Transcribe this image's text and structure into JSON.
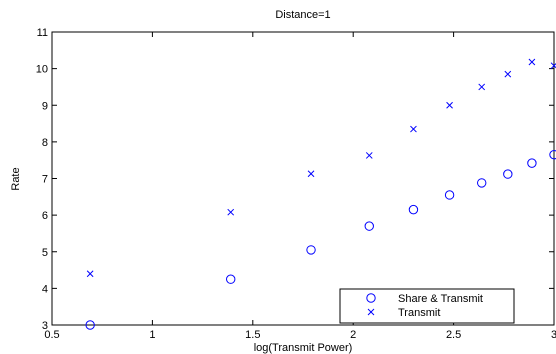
{
  "chart_data": {
    "type": "scatter",
    "title": "Distance=1",
    "xlabel": "log(Transmit Power)",
    "ylabel": "Rate",
    "xlim": [
      0.5,
      3
    ],
    "ylim": [
      3,
      11
    ],
    "xticks": [
      0.5,
      1,
      1.5,
      2,
      2.5,
      3
    ],
    "xtick_labels": [
      "0.5",
      "1",
      "1.5",
      "2",
      "2.5",
      "3"
    ],
    "yticks": [
      3,
      4,
      5,
      6,
      7,
      8,
      9,
      10,
      11
    ],
    "ytick_labels": [
      "3",
      "4",
      "5",
      "6",
      "7",
      "8",
      "9",
      "10",
      "11"
    ],
    "grid": false,
    "legend_position": "bottom-right",
    "series": [
      {
        "name": "Share & Transmit",
        "marker": "circle",
        "color": "#0000ff",
        "x": [
          0.69,
          1.39,
          1.79,
          2.08,
          2.3,
          2.48,
          2.64,
          2.77,
          2.89,
          3.0
        ],
        "y": [
          3.0,
          4.25,
          5.05,
          5.7,
          6.15,
          6.55,
          6.88,
          7.12,
          7.42,
          7.65
        ]
      },
      {
        "name": "Transmit",
        "marker": "x",
        "color": "#0000ff",
        "x": [
          0.69,
          1.39,
          1.79,
          2.08,
          2.3,
          2.48,
          2.64,
          2.77,
          2.89,
          3.0
        ],
        "y": [
          4.4,
          6.08,
          7.13,
          7.63,
          8.35,
          9.0,
          9.5,
          9.85,
          10.18,
          10.08
        ]
      }
    ]
  }
}
